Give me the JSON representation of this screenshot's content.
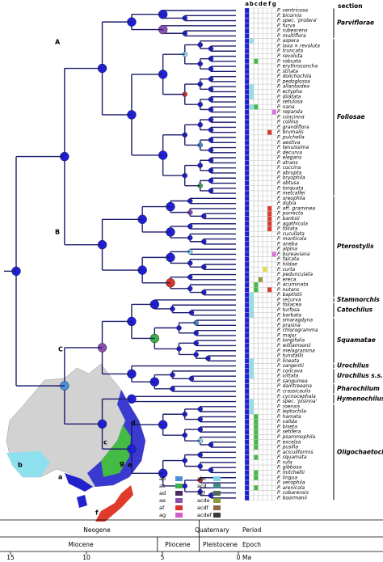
{
  "column_headers": [
    "a",
    "b",
    "c",
    "d",
    "e",
    "f",
    "g"
  ],
  "section_header": "section",
  "taxa": [
    "P. ventricosa",
    "P. bicornis",
    "P. spec. 'protera'",
    "P. furva",
    "P. rubescens",
    "P. multiflora",
    "P. aspera",
    "P. laxa × revoluta",
    "P. truncata",
    "P. revoluta",
    "P. robusta",
    "P. erythroconcha",
    "P. striata",
    "P. dolichochila",
    "P. pedoglossa",
    "P. allantoidea",
    "P. ectypha",
    "P. dilatata",
    "P. setulosa",
    "P. nana",
    "P. repanda",
    "P. concinna",
    "P. collina",
    "P. grandiflora",
    "P. brumalis",
    "P. pulchella",
    "P. aestiva",
    "P. tenuissima",
    "P. decurva",
    "P. elegans",
    "P. atrans",
    "P. coccina",
    "P. abrupta",
    "P. bryophila",
    "P. obtusa",
    "P. torquata",
    "P. metcalfei",
    "P. oreophila",
    "P. dubia",
    "P. aff. graminea",
    "P. porrecta",
    "P. banksii",
    "P. agathicola",
    "P. foliata",
    "P. cucullata",
    "P. monticola",
    "P. aneba",
    "P. alpina",
    "P. bureaviana",
    "P. falcata",
    "P. hildae",
    "P. curta",
    "P. pedunculata",
    "P. ereca",
    "P. acuminata",
    "P. nutans",
    "P. baptistii",
    "P. recurva",
    "P. foliacea",
    "P. turfosa",
    "P. barbata",
    "P. smaragdyna",
    "P. prasina",
    "P. chlorogramma",
    "P. major",
    "P. longifolia",
    "P. williamsonii",
    "P. melagramma",
    "P. tunstallii",
    "P. lineata",
    "P. sargentii",
    "P. concava",
    "P. vittata",
    "P. sanguinea",
    "P. daintreeana",
    "P. crassicaulis",
    "P. cycnocephala",
    "P. spec. 'pisinna'",
    "P. roensis",
    "P. leptochila",
    "P. hamata",
    "P. valida",
    "P. biseta",
    "P. setifera",
    "P. psammophila",
    "P. excelsa",
    "P. pusilla",
    "P. aciculiformis",
    "P. squamata",
    "P. rufa",
    "P. gibbosa",
    "P. mitchellii",
    "P. lingua",
    "P. xerophila",
    "P. arenicola",
    "P. cobarensis",
    "P. boormanii"
  ],
  "sections": [
    "Parviflorae",
    "Foliosae",
    "Pterostylis",
    "Stamnorchis",
    "Catochilus",
    "Squamatae",
    "Urochilus",
    "Urochilus s.s.",
    "Pharochilum",
    "Hymenochilus",
    "Oligochaetochilus"
  ],
  "clades": [
    "A",
    "B",
    "C"
  ],
  "legend": [
    {
      "label": "ab",
      "color": "#4a90d9"
    },
    {
      "label": "ac",
      "color": "#3cae4a"
    },
    {
      "label": "ad",
      "color": "#4b2a5e"
    },
    {
      "label": "ae",
      "color": "#8a4fb0"
    },
    {
      "label": "af",
      "color": "#d9342b"
    },
    {
      "label": "ag",
      "color": "#d25cc8"
    },
    {
      "label": "abc",
      "color": "#7fd6e0"
    },
    {
      "label": "acd",
      "color": "#3c8c84"
    },
    {
      "label": "acf",
      "color": "#556b5a"
    },
    {
      "label": "acde",
      "color": "#8c9a3c"
    },
    {
      "label": "acdf",
      "color": "#8a6a48"
    },
    {
      "label": "acdef",
      "color": "#3a3a3a"
    }
  ],
  "map_labels": [
    "a",
    "b",
    "c",
    "d",
    "e",
    "f",
    "g"
  ],
  "timescale": {
    "periods": [
      "Neogene",
      "Quaternary"
    ],
    "period_label": "Period",
    "epochs": [
      "Miocene",
      "Pliocene",
      "Pleistocene"
    ],
    "epoch_label": "Epoch",
    "ticks": [
      15,
      10,
      5,
      0
    ],
    "unit": "Ma"
  }
}
